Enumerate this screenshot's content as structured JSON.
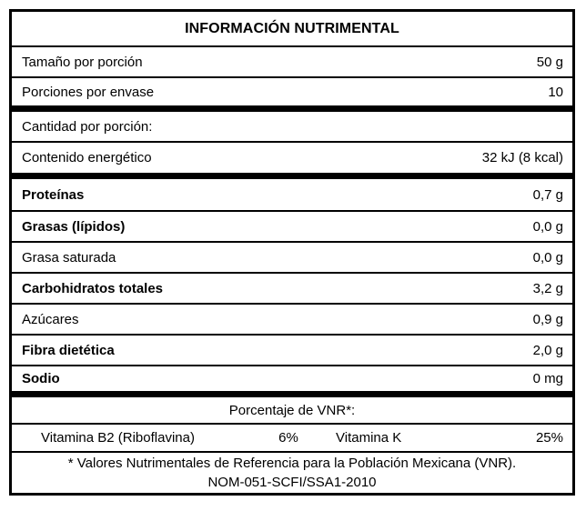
{
  "title": "INFORMACIÓN NUTRIMENTAL",
  "rows": [
    {
      "label": "Tamaño por porción",
      "value": "50 g"
    },
    {
      "label": "Porciones por envase",
      "value": "10"
    },
    {
      "label": "Cantidad por porción:",
      "value": ""
    },
    {
      "label": "Contenido energético",
      "value": "32 kJ (8 kcal)"
    },
    {
      "label": "Proteínas",
      "value": "0,7 g"
    },
    {
      "label": "Grasas (lípidos)",
      "value": "0,0 g"
    },
    {
      "label": "Grasa saturada",
      "value": "0,0 g"
    },
    {
      "label": "Carbohidratos totales",
      "value": "3,2 g"
    },
    {
      "label": "Azúcares",
      "value": "0,9 g"
    },
    {
      "label": "Fibra dietética",
      "value": "2,0 g"
    },
    {
      "label": "Sodio",
      "value": "0 mg"
    }
  ],
  "vnr": {
    "header": "Porcentaje de VNR*:",
    "items": [
      {
        "label": "Vitamina B2 (Riboflavina)",
        "value": "6%"
      },
      {
        "label": "Vitamina K",
        "value": "25%"
      }
    ]
  },
  "footer": {
    "line1": "* Valores Nutrimentales de Referencia para la Población Mexicana (VNR).",
    "line2": "NOM-051-SCFI/SSA1-2010"
  },
  "colors": {
    "border": "#000000",
    "background": "#ffffff",
    "text": "#000000"
  }
}
